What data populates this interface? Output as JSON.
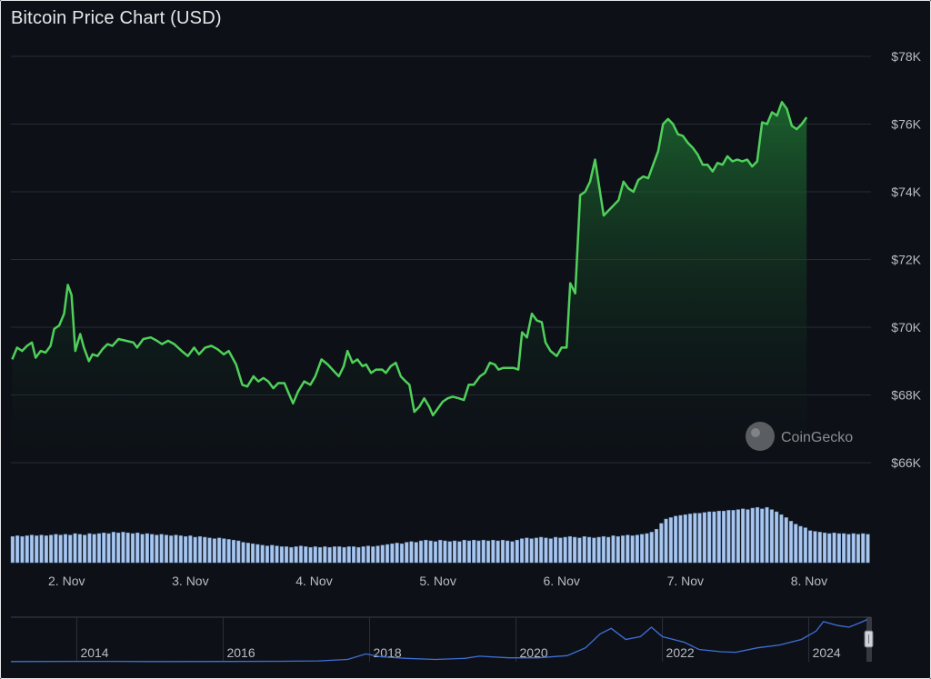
{
  "chart_data": {
    "type": "line",
    "title": "Bitcoin Price Chart (USD)",
    "currency": "USD",
    "watermark": "CoinGecko",
    "ylim": [
      66000,
      78000
    ],
    "y_ticks": [
      "$66K",
      "$68K",
      "$70K",
      "$72K",
      "$74K",
      "$76K",
      "$78K"
    ],
    "y_tick_values": [
      66000,
      68000,
      70000,
      72000,
      74000,
      76000,
      78000
    ],
    "x_range_days": [
      1.55,
      8.5
    ],
    "x_ticks": [
      "2. Nov",
      "3. Nov",
      "4. Nov",
      "5. Nov",
      "6. Nov",
      "7. Nov",
      "8. Nov"
    ],
    "x_tick_values": [
      2,
      3,
      4,
      5,
      6,
      7,
      8
    ],
    "grid": true,
    "series": [
      {
        "color": "#4fd05a",
        "points": [
          [
            1.56,
            69050
          ],
          [
            1.6,
            69400
          ],
          [
            1.64,
            69300
          ],
          [
            1.68,
            69450
          ],
          [
            1.72,
            69550
          ],
          [
            1.75,
            69100
          ],
          [
            1.79,
            69300
          ],
          [
            1.83,
            69250
          ],
          [
            1.87,
            69450
          ],
          [
            1.9,
            69950
          ],
          [
            1.94,
            70050
          ],
          [
            1.98,
            70400
          ],
          [
            2.01,
            71250
          ],
          [
            2.04,
            70950
          ],
          [
            2.07,
            69300
          ],
          [
            2.11,
            69800
          ],
          [
            2.14,
            69400
          ],
          [
            2.18,
            69000
          ],
          [
            2.21,
            69200
          ],
          [
            2.25,
            69150
          ],
          [
            2.29,
            69350
          ],
          [
            2.33,
            69500
          ],
          [
            2.37,
            69450
          ],
          [
            2.42,
            69650
          ],
          [
            2.48,
            69600
          ],
          [
            2.54,
            69550
          ],
          [
            2.57,
            69400
          ],
          [
            2.62,
            69650
          ],
          [
            2.68,
            69700
          ],
          [
            2.73,
            69600
          ],
          [
            2.77,
            69500
          ],
          [
            2.82,
            69600
          ],
          [
            2.87,
            69500
          ],
          [
            2.93,
            69300
          ],
          [
            2.98,
            69150
          ],
          [
            3.03,
            69400
          ],
          [
            3.07,
            69200
          ],
          [
            3.12,
            69400
          ],
          [
            3.17,
            69450
          ],
          [
            3.22,
            69350
          ],
          [
            3.27,
            69200
          ],
          [
            3.31,
            69300
          ],
          [
            3.37,
            68900
          ],
          [
            3.42,
            68300
          ],
          [
            3.46,
            68250
          ],
          [
            3.51,
            68550
          ],
          [
            3.55,
            68400
          ],
          [
            3.59,
            68500
          ],
          [
            3.63,
            68400
          ],
          [
            3.67,
            68200
          ],
          [
            3.71,
            68350
          ],
          [
            3.76,
            68350
          ],
          [
            3.8,
            68000
          ],
          [
            3.83,
            67750
          ],
          [
            3.87,
            68100
          ],
          [
            3.92,
            68400
          ],
          [
            3.97,
            68300
          ],
          [
            4.01,
            68550
          ],
          [
            4.06,
            69050
          ],
          [
            4.11,
            68900
          ],
          [
            4.16,
            68700
          ],
          [
            4.2,
            68550
          ],
          [
            4.24,
            68850
          ],
          [
            4.27,
            69300
          ],
          [
            4.31,
            68950
          ],
          [
            4.35,
            69050
          ],
          [
            4.39,
            68850
          ],
          [
            4.42,
            68900
          ],
          [
            4.46,
            68650
          ],
          [
            4.5,
            68750
          ],
          [
            4.55,
            68750
          ],
          [
            4.58,
            68650
          ],
          [
            4.62,
            68850
          ],
          [
            4.66,
            68950
          ],
          [
            4.7,
            68550
          ],
          [
            4.74,
            68400
          ],
          [
            4.77,
            68300
          ],
          [
            4.81,
            67500
          ],
          [
            4.85,
            67650
          ],
          [
            4.89,
            67900
          ],
          [
            4.93,
            67650
          ],
          [
            4.96,
            67400
          ],
          [
            5.0,
            67600
          ],
          [
            5.04,
            67800
          ],
          [
            5.08,
            67900
          ],
          [
            5.12,
            67950
          ],
          [
            5.17,
            67900
          ],
          [
            5.21,
            67850
          ],
          [
            5.25,
            68300
          ],
          [
            5.29,
            68300
          ],
          [
            5.34,
            68550
          ],
          [
            5.38,
            68650
          ],
          [
            5.42,
            68950
          ],
          [
            5.46,
            68900
          ],
          [
            5.49,
            68750
          ],
          [
            5.53,
            68800
          ],
          [
            5.57,
            68800
          ],
          [
            5.61,
            68800
          ],
          [
            5.65,
            68750
          ],
          [
            5.68,
            69850
          ],
          [
            5.72,
            69700
          ],
          [
            5.76,
            70400
          ],
          [
            5.8,
            70200
          ],
          [
            5.84,
            70150
          ],
          [
            5.87,
            69550
          ],
          [
            5.91,
            69300
          ],
          [
            5.96,
            69150
          ],
          [
            6.0,
            69400
          ],
          [
            6.04,
            69400
          ],
          [
            6.07,
            71300
          ],
          [
            6.11,
            71000
          ],
          [
            6.15,
            73900
          ],
          [
            6.19,
            74000
          ],
          [
            6.23,
            74300
          ],
          [
            6.27,
            74950
          ],
          [
            6.3,
            74250
          ],
          [
            6.34,
            73300
          ],
          [
            6.38,
            73450
          ],
          [
            6.42,
            73600
          ],
          [
            6.46,
            73750
          ],
          [
            6.5,
            74300
          ],
          [
            6.54,
            74100
          ],
          [
            6.58,
            74000
          ],
          [
            6.62,
            74350
          ],
          [
            6.66,
            74450
          ],
          [
            6.7,
            74400
          ],
          [
            6.74,
            74800
          ],
          [
            6.78,
            75200
          ],
          [
            6.82,
            76000
          ],
          [
            6.86,
            76150
          ],
          [
            6.9,
            76000
          ],
          [
            6.94,
            75700
          ],
          [
            6.98,
            75650
          ],
          [
            7.02,
            75450
          ],
          [
            7.06,
            75300
          ],
          [
            7.1,
            75100
          ],
          [
            7.14,
            74800
          ],
          [
            7.18,
            74800
          ],
          [
            7.22,
            74600
          ],
          [
            7.26,
            74850
          ],
          [
            7.3,
            74800
          ],
          [
            7.34,
            75050
          ],
          [
            7.38,
            74900
          ],
          [
            7.42,
            74950
          ],
          [
            7.46,
            74900
          ],
          [
            7.5,
            74950
          ],
          [
            7.54,
            74750
          ],
          [
            7.58,
            74900
          ],
          [
            7.62,
            76050
          ],
          [
            7.66,
            76000
          ],
          [
            7.7,
            76350
          ],
          [
            7.74,
            76250
          ],
          [
            7.78,
            76650
          ],
          [
            7.82,
            76450
          ],
          [
            7.86,
            75950
          ],
          [
            7.9,
            75850
          ],
          [
            7.94,
            76000
          ],
          [
            7.98,
            76200
          ]
        ]
      }
    ],
    "volume": {
      "values": [
        36,
        37,
        36,
        37,
        38,
        37,
        38,
        37,
        38,
        39,
        38,
        39,
        38,
        40,
        39,
        38,
        40,
        39,
        40,
        41,
        40,
        42,
        41,
        42,
        41,
        40,
        41,
        39,
        40,
        39,
        38,
        39,
        38,
        37,
        38,
        37,
        36,
        37,
        35,
        36,
        35,
        34,
        33,
        34,
        33,
        32,
        31,
        30,
        28,
        27,
        26,
        25,
        24,
        23,
        24,
        23,
        22,
        22,
        21,
        22,
        23,
        22,
        21,
        22,
        21,
        22,
        21,
        22,
        22,
        21,
        22,
        22,
        21,
        22,
        23,
        22,
        23,
        24,
        25,
        26,
        27,
        26,
        28,
        29,
        28,
        30,
        31,
        30,
        29,
        31,
        30,
        29,
        30,
        29,
        31,
        30,
        31,
        30,
        31,
        30,
        31,
        30,
        31,
        30,
        29,
        31,
        33,
        34,
        33,
        34,
        35,
        34,
        33,
        35,
        34,
        35,
        36,
        35,
        34,
        36,
        35,
        34,
        35,
        36,
        35,
        37,
        36,
        37,
        38,
        37,
        38,
        39,
        40,
        42,
        46,
        54,
        60,
        62,
        64,
        65,
        66,
        67,
        68,
        68,
        69,
        70,
        70,
        71,
        71,
        72,
        72,
        73,
        74,
        73,
        75,
        76,
        74,
        76,
        73,
        70,
        66,
        62,
        57,
        53,
        50,
        48,
        44,
        43,
        42,
        41,
        40,
        41,
        40,
        40,
        39,
        40,
        39,
        40,
        39
      ]
    },
    "navigator": {
      "x_ticks": [
        "2014",
        "2016",
        "2018",
        "2020",
        "2022",
        "2024"
      ],
      "x_tick_values": [
        2014,
        2016,
        2018,
        2020,
        2022,
        2024
      ],
      "x_range_years": [
        2013.1,
        2024.85
      ],
      "points": [
        [
          2013.1,
          0.3
        ],
        [
          2013.9,
          0.6
        ],
        [
          2014.5,
          0.6
        ],
        [
          2015.0,
          0.4
        ],
        [
          2016.0,
          0.5
        ],
        [
          2016.8,
          0.8
        ],
        [
          2017.3,
          1.5
        ],
        [
          2017.7,
          4
        ],
        [
          2017.95,
          14
        ],
        [
          2018.15,
          9
        ],
        [
          2018.5,
          6
        ],
        [
          2018.9,
          4
        ],
        [
          2019.3,
          6
        ],
        [
          2019.5,
          10
        ],
        [
          2019.9,
          7
        ],
        [
          2020.3,
          7
        ],
        [
          2020.7,
          11
        ],
        [
          2020.95,
          25
        ],
        [
          2021.15,
          50
        ],
        [
          2021.3,
          60
        ],
        [
          2021.5,
          40
        ],
        [
          2021.7,
          45
        ],
        [
          2021.85,
          62
        ],
        [
          2022.0,
          45
        ],
        [
          2022.3,
          35
        ],
        [
          2022.5,
          22
        ],
        [
          2022.8,
          18
        ],
        [
          2023.0,
          17
        ],
        [
          2023.3,
          25
        ],
        [
          2023.6,
          30
        ],
        [
          2023.9,
          40
        ],
        [
          2024.1,
          55
        ],
        [
          2024.2,
          72
        ],
        [
          2024.4,
          65
        ],
        [
          2024.55,
          62
        ],
        [
          2024.7,
          70
        ],
        [
          2024.8,
          76
        ]
      ]
    }
  }
}
